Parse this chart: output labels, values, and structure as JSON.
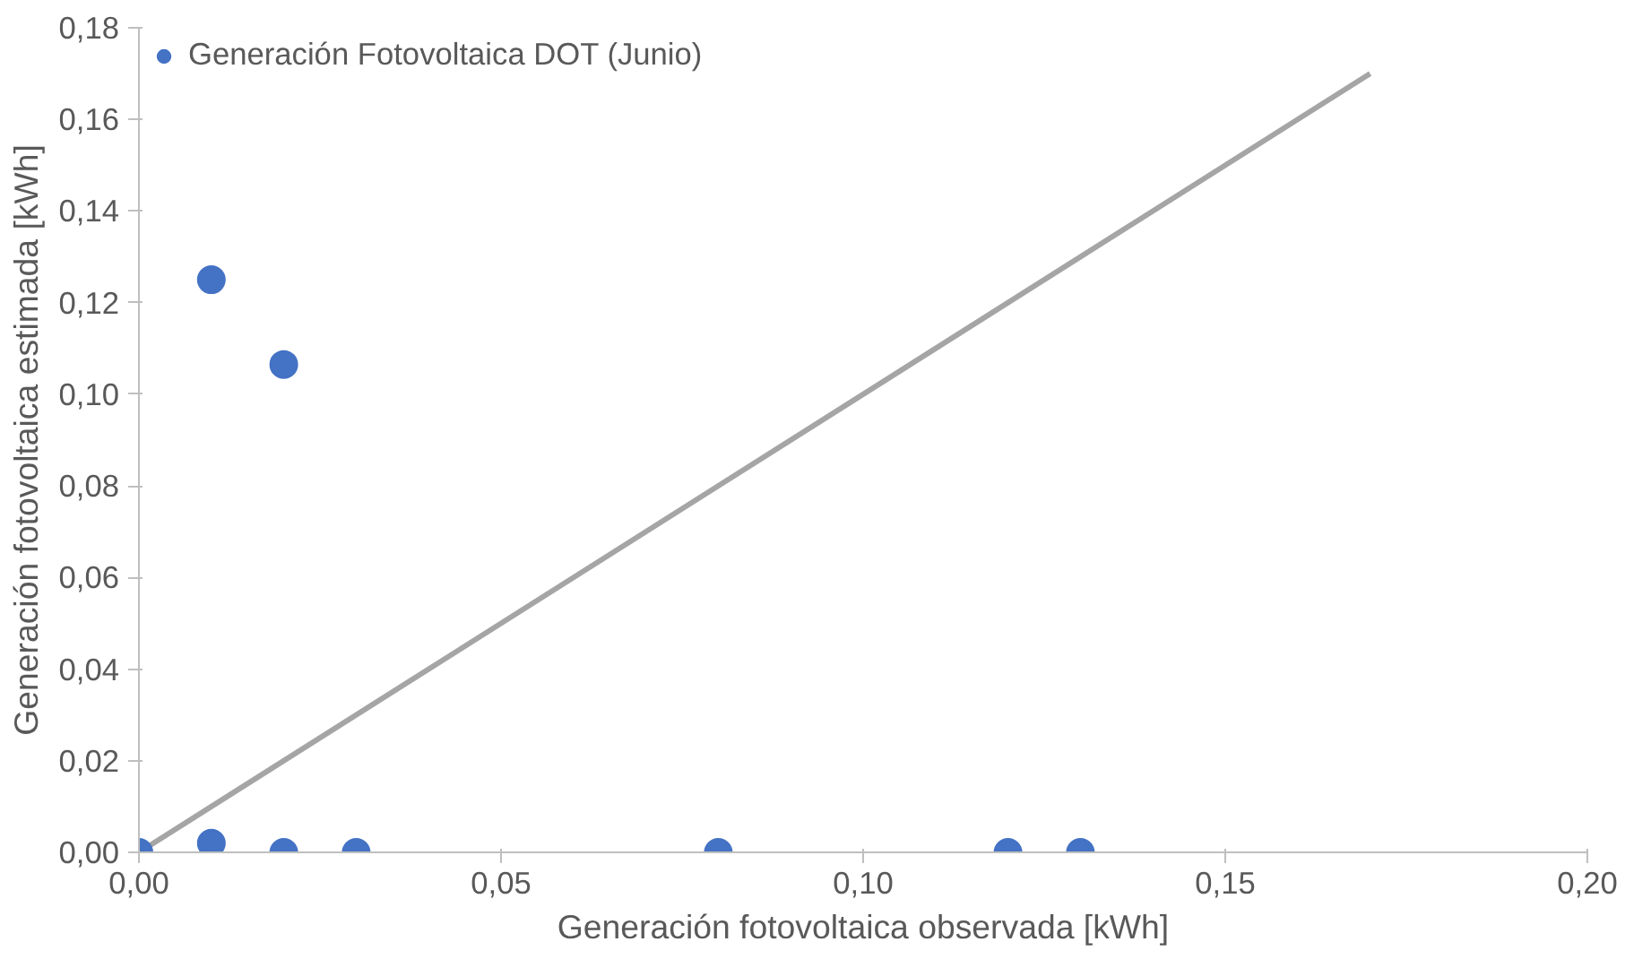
{
  "chart_data": {
    "type": "scatter",
    "xlabel": "Generación fotovoltaica observada [kWh]",
    "ylabel": "Generación fotovoltaica estimada [kWh]",
    "xlim": [
      0,
      0.2
    ],
    "ylim": [
      0,
      0.18
    ],
    "xticks": [
      {
        "value": 0,
        "label": "0,00"
      },
      {
        "value": 0.05,
        "label": "0,05"
      },
      {
        "value": 0.1,
        "label": "0,10"
      },
      {
        "value": 0.15,
        "label": "0,15"
      },
      {
        "value": 0.2,
        "label": "0,20"
      }
    ],
    "yticks": [
      {
        "value": 0,
        "label": "0,00"
      },
      {
        "value": 0.02,
        "label": "0,02"
      },
      {
        "value": 0.04,
        "label": "0,04"
      },
      {
        "value": 0.06,
        "label": "0,06"
      },
      {
        "value": 0.08,
        "label": "0,08"
      },
      {
        "value": 0.1,
        "label": "0,10"
      },
      {
        "value": 0.12,
        "label": "0,12"
      },
      {
        "value": 0.14,
        "label": "0,14"
      },
      {
        "value": 0.16,
        "label": "0,16"
      },
      {
        "value": 0.18,
        "label": "0,18"
      }
    ],
    "grid": false,
    "legend": "top left",
    "series": [
      {
        "color": "#a5a5a5",
        "type": "line",
        "line_style": "solid",
        "x": [
          0,
          0.17
        ],
        "values": [
          0,
          0.17
        ]
      },
      {
        "name": "Generación Fotovoltaica DOT (Junio)",
        "color": "#4472c4",
        "marker": "circle",
        "x": [
          0,
          0.01,
          0.02,
          0.01,
          0.02,
          0.03,
          0.08,
          0.12,
          0.13
        ],
        "values": [
          0,
          0.125,
          0.1065,
          0.002,
          0,
          0,
          0,
          0,
          0
        ]
      }
    ]
  }
}
